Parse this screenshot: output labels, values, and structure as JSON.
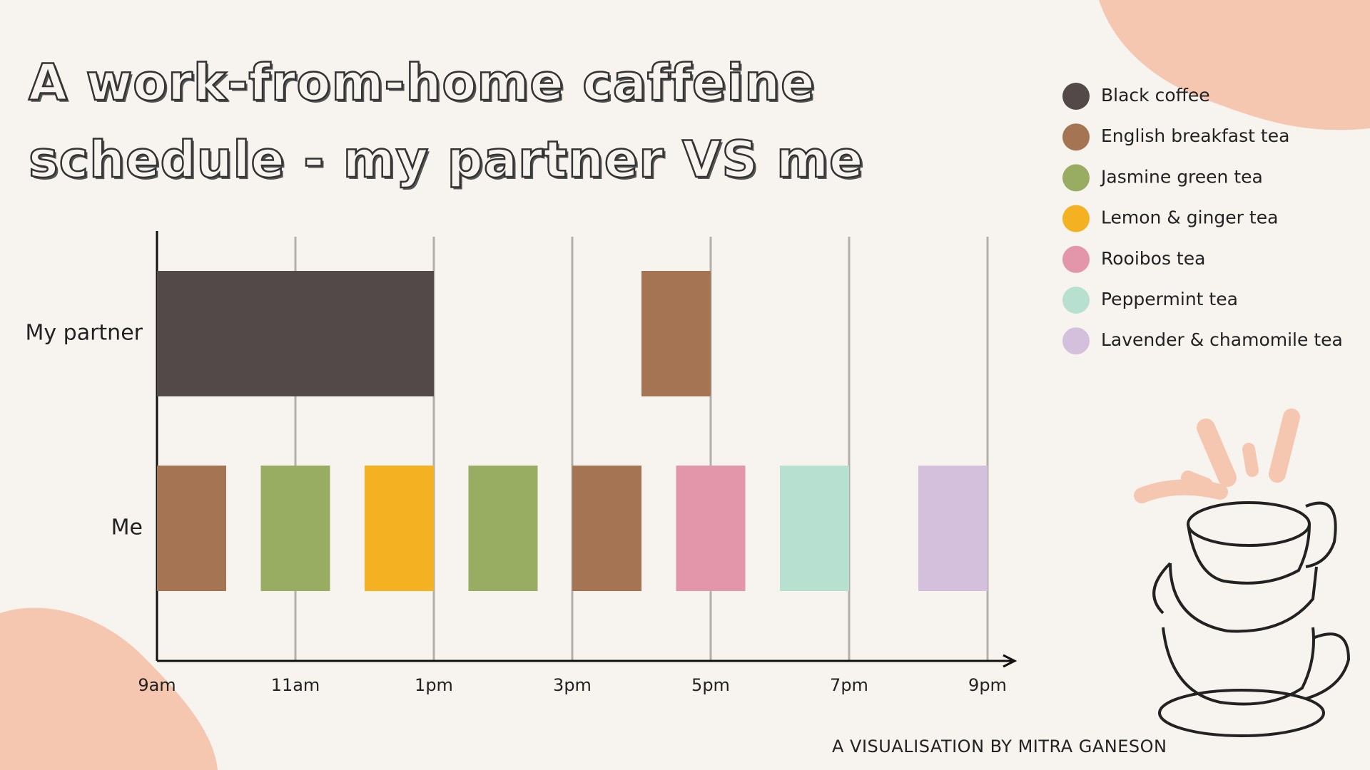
{
  "chart_data": {
    "type": "gantt",
    "title": "A work-from-home caffeine schedule - my partner VS me",
    "footer": "A VISUALISATION BY MITRA GANESON",
    "categories": [
      "My partner",
      "Me"
    ],
    "series": [
      {
        "name": "Black coffee",
        "color": "#524948"
      },
      {
        "name": "English breakfast tea",
        "color": "#a57452"
      },
      {
        "name": "Jasmine green tea",
        "color": "#98ad62"
      },
      {
        "name": "Lemon & ginger tea",
        "color": "#f4b223"
      },
      {
        "name": "Rooibos tea",
        "color": "#e396aa"
      },
      {
        "name": "Peppermint tea",
        "color": "#b8e0d0"
      },
      {
        "name": "Lavender & chamomile tea",
        "color": "#d4bfdc"
      }
    ],
    "segments": [
      {
        "row": "My partner",
        "drink": "Black coffee",
        "start": 9,
        "end": 13
      },
      {
        "row": "My partner",
        "drink": "English breakfast tea",
        "start": 16,
        "end": 17
      },
      {
        "row": "Me",
        "drink": "English breakfast tea",
        "start": 9,
        "end": 10
      },
      {
        "row": "Me",
        "drink": "Jasmine green tea",
        "start": 10.5,
        "end": 11.5
      },
      {
        "row": "Me",
        "drink": "Lemon & ginger tea",
        "start": 12,
        "end": 13
      },
      {
        "row": "Me",
        "drink": "Jasmine green tea",
        "start": 13.5,
        "end": 14.5
      },
      {
        "row": "Me",
        "drink": "English breakfast tea",
        "start": 15,
        "end": 16
      },
      {
        "row": "Me",
        "drink": "Rooibos tea",
        "start": 16.5,
        "end": 17.5
      },
      {
        "row": "Me",
        "drink": "Peppermint tea",
        "start": 18,
        "end": 19
      },
      {
        "row": "Me",
        "drink": "Lavender & chamomile tea",
        "start": 20,
        "end": 21
      }
    ],
    "xlim": [
      9,
      21
    ],
    "xticks": [
      {
        "value": 9,
        "label": "9am"
      },
      {
        "value": 11,
        "label": "11am"
      },
      {
        "value": 13,
        "label": "1pm"
      },
      {
        "value": 15,
        "label": "3pm"
      },
      {
        "value": 17,
        "label": "5pm"
      },
      {
        "value": 19,
        "label": "7pm"
      },
      {
        "value": 21,
        "label": "9pm"
      }
    ],
    "grid": true
  }
}
